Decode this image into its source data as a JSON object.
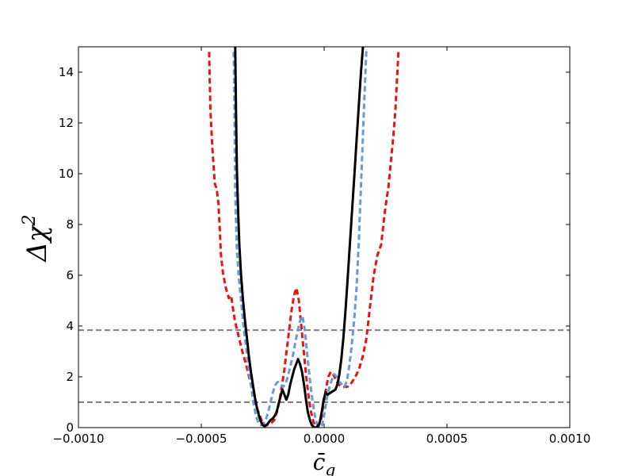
{
  "chart_data": {
    "type": "line",
    "title": "",
    "xlabel": "c̄",
    "xlabel_sub": "g",
    "ylabel": "Δχ",
    "ylabel_sup": "2",
    "xlim": [
      -0.001,
      0.001
    ],
    "ylim": [
      0,
      15
    ],
    "grid": false,
    "x_ticks": [
      -0.001,
      -0.0005,
      0.0,
      0.0005,
      0.001
    ],
    "x_tick_labels": [
      "−0.0010",
      "−0.0005",
      "0.0000",
      "0.0005",
      "0.0010"
    ],
    "y_ticks": [
      0,
      2,
      4,
      6,
      8,
      10,
      12,
      14
    ],
    "y_tick_labels": [
      "0",
      "2",
      "4",
      "6",
      "8",
      "10",
      "12",
      "14"
    ],
    "reference_lines": [
      {
        "y": 1.0,
        "color": "#808080",
        "style": "dashed"
      },
      {
        "y": 3.84,
        "color": "#808080",
        "style": "dashed"
      }
    ],
    "series": [
      {
        "color": "#ee1111",
        "style": "dashed",
        "x": [
          -0.000468,
          -0.000463,
          -0.000455,
          -0.000445,
          -0.000437,
          -0.00043,
          -0.000425,
          -0.00042,
          -0.000412,
          -0.0004,
          -0.000388,
          -0.000378,
          -0.000373,
          -0.000363,
          -0.000348,
          -0.000333,
          -0.000318,
          -0.000303,
          -0.000288,
          -0.000275,
          -0.000263,
          -0.000253,
          -0.000243,
          -0.000233,
          -0.000223,
          -0.000213,
          -0.000203,
          -0.000193,
          -0.000183,
          -0.000173,
          -0.000163,
          -0.000153,
          -0.000143,
          -0.000133,
          -0.000123,
          -0.000113,
          -0.000103,
          -9.3e-05,
          -8.3e-05,
          -7.3e-05,
          -6.3e-05,
          -5.3e-05,
          -4.3e-05,
          -3.3e-05,
          -2.3e-05,
          -1.3e-05,
          -3e-06,
          7e-06,
          1.7e-05,
          2.7e-05,
          3.7e-05,
          4.7e-05,
          5.7e-05,
          6.7e-05,
          7.7e-05,
          8.7e-05,
          9.7e-05,
          0.000107,
          0.000117,
          0.000127,
          0.000142,
          0.000157,
          0.000172,
          0.000187,
          0.000202,
          0.000217,
          0.000232,
          0.000247,
          0.000262,
          0.000272,
          0.000282,
          0.00029,
          0.000297,
          0.000303
        ],
        "y": [
          14.8,
          12.5,
          11.0,
          9.6,
          9.4,
          8.8,
          7.8,
          6.8,
          6.1,
          5.5,
          5.1,
          5.2,
          4.8,
          4.2,
          3.6,
          3.0,
          2.5,
          1.9,
          1.3,
          0.8,
          0.5,
          0.25,
          0.1,
          0.1,
          0.15,
          0.2,
          0.3,
          0.6,
          1.0,
          1.6,
          2.2,
          3.0,
          3.8,
          4.6,
          5.2,
          5.5,
          5.0,
          4.0,
          3.0,
          2.0,
          1.2,
          0.6,
          0.2,
          0.05,
          0.05,
          0.3,
          0.9,
          1.5,
          2.0,
          2.2,
          2.1,
          1.9,
          1.7,
          1.65,
          1.6,
          1.6,
          1.62,
          1.7,
          1.85,
          2.0,
          2.3,
          2.8,
          3.5,
          4.8,
          6.0,
          6.8,
          7.2,
          8.5,
          9.5,
          10.5,
          11.5,
          12.5,
          13.8,
          14.9
        ]
      },
      {
        "color": "#6699dd",
        "style": "dashed",
        "x": [
          -0.000368,
          -0.000366,
          -0.000364,
          -0.000362,
          -0.00036,
          -0.000355,
          -0.000348,
          -0.000338,
          -0.000328,
          -0.000318,
          -0.000308,
          -0.000298,
          -0.000288,
          -0.000278,
          -0.000268,
          -0.000258,
          -0.000248,
          -0.000238,
          -0.000228,
          -0.000218,
          -0.000208,
          -0.000198,
          -0.000188,
          -0.000178,
          -0.000168,
          -0.000158,
          -0.000148,
          -0.000138,
          -0.000128,
          -0.000118,
          -0.000108,
          -9.8e-05,
          -8.8e-05,
          -7.8e-05,
          -6.8e-05,
          -5.8e-05,
          -4.8e-05,
          -3.8e-05,
          -2.8e-05,
          -1.8e-05,
          -8e-06,
          2e-06,
          1.2e-05,
          2.2e-05,
          3.2e-05,
          4.2e-05,
          5.2e-05,
          6.2e-05,
          7.2e-05,
          8.2e-05,
          9.2e-05,
          0.000102,
          0.000112,
          0.000122,
          0.000132,
          0.000142,
          0.000152,
          0.000162,
          0.000172
        ],
        "y": [
          14.8,
          13.5,
          11.5,
          9.5,
          8.5,
          7.0,
          6.0,
          5.0,
          4.0,
          3.2,
          2.4,
          1.7,
          1.0,
          0.5,
          0.2,
          0.1,
          0.15,
          0.3,
          0.6,
          1.0,
          1.4,
          1.7,
          1.8,
          1.7,
          1.6,
          1.7,
          2.0,
          2.4,
          2.8,
          3.3,
          3.8,
          4.2,
          4.4,
          3.8,
          2.8,
          1.9,
          1.1,
          0.5,
          0.1,
          0.05,
          0.1,
          0.6,
          1.2,
          1.6,
          1.9,
          2.1,
          2.0,
          1.8,
          1.7,
          1.6,
          1.8,
          2.4,
          3.2,
          4.2,
          5.5,
          7.5,
          10.0,
          12.5,
          14.9
        ]
      },
      {
        "color": "#000000",
        "style": "solid",
        "x": [
          -0.000362,
          -0.00036,
          -0.000358,
          -0.000355,
          -0.00035,
          -0.000345,
          -0.000338,
          -0.00033,
          -0.000322,
          -0.000314,
          -0.000306,
          -0.000298,
          -0.00029,
          -0.000282,
          -0.000274,
          -0.000266,
          -0.000258,
          -0.00025,
          -0.000242,
          -0.000234,
          -0.000226,
          -0.000218,
          -0.00021,
          -0.000202,
          -0.000194,
          -0.000186,
          -0.000178,
          -0.00017,
          -0.000162,
          -0.000154,
          -0.000146,
          -0.000138,
          -0.00013,
          -0.000122,
          -0.000114,
          -0.000106,
          -9.8e-05,
          -9e-05,
          -8.2e-05,
          -7.4e-05,
          -6.6e-05,
          -5.8e-05,
          -5e-05,
          -4.2e-05,
          -3.4e-05,
          -2.6e-05,
          -1.8e-05,
          -1e-05,
          -2e-06,
          6e-06,
          1.4e-05,
          2.2e-05,
          3e-05,
          3.8e-05,
          4.6e-05,
          5.4e-05,
          6.2e-05,
          7e-05,
          7.8e-05,
          8.6e-05,
          9.4e-05,
          0.000102,
          0.00011,
          0.000118,
          0.000126,
          0.000134,
          0.000142,
          0.00015,
          0.000158
        ],
        "y": [
          15.0,
          13.5,
          12.0,
          10.2,
          8.5,
          7.2,
          6.0,
          5.0,
          4.2,
          3.5,
          2.8,
          2.2,
          1.7,
          1.2,
          0.8,
          0.5,
          0.25,
          0.1,
          0.05,
          0.1,
          0.2,
          0.3,
          0.35,
          0.45,
          0.6,
          0.9,
          1.2,
          1.5,
          1.3,
          1.1,
          1.3,
          1.7,
          2.0,
          2.3,
          2.5,
          2.7,
          2.5,
          2.2,
          1.7,
          1.1,
          0.6,
          0.3,
          0.1,
          0.02,
          0.0,
          0.05,
          0.2,
          0.6,
          1.1,
          1.4,
          1.3,
          1.35,
          1.4,
          1.45,
          1.5,
          1.7,
          2.1,
          2.7,
          3.5,
          4.5,
          5.6,
          6.8,
          8.0,
          9.2,
          10.4,
          11.6,
          12.8,
          14.0,
          15.0
        ]
      }
    ]
  }
}
